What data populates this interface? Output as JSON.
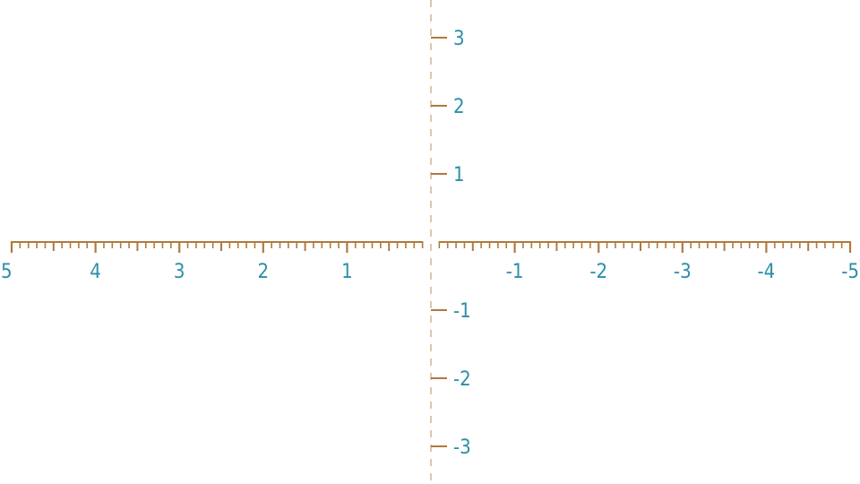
{
  "colors": {
    "axis": "#B07A3E",
    "label": "#2A8FA8",
    "background": "#FFFFFF"
  },
  "horizontal_axis": {
    "direction": "reversed",
    "range": [
      5,
      -5
    ],
    "minor_divisions_per_unit": 10,
    "labels": [
      {
        "value": 5,
        "text": "5"
      },
      {
        "value": 4,
        "text": "4"
      },
      {
        "value": 3,
        "text": "3"
      },
      {
        "value": 2,
        "text": "2"
      },
      {
        "value": 1,
        "text": "1"
      },
      {
        "value": -1,
        "text": "-1"
      },
      {
        "value": -2,
        "text": "-2"
      },
      {
        "value": -3,
        "text": "-3"
      },
      {
        "value": -4,
        "text": "-4"
      },
      {
        "value": -5,
        "text": "-5"
      }
    ]
  },
  "vertical_axis": {
    "style": "dashed",
    "labels": [
      {
        "value": 3,
        "text": "3"
      },
      {
        "value": 2,
        "text": "2"
      },
      {
        "value": 1,
        "text": "1"
      },
      {
        "value": -1,
        "text": "-1"
      },
      {
        "value": -2,
        "text": "-2"
      },
      {
        "value": -3,
        "text": "-3"
      }
    ]
  }
}
